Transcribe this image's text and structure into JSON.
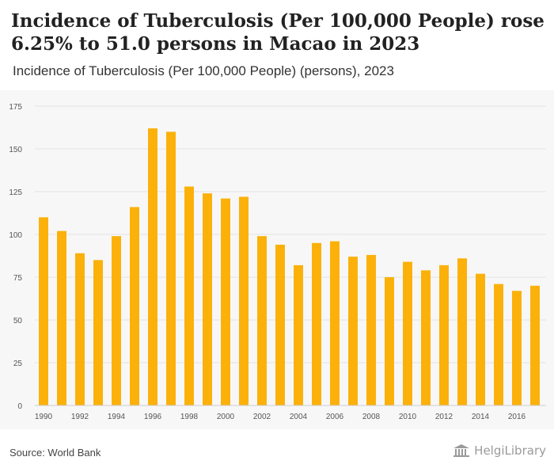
{
  "header": {
    "title": "Incidence of Tuberculosis (Per 100,000 People) rose 6.25% to 51.0 persons in Macao in 2023",
    "subtitle": "Incidence of Tuberculosis (Per 100,000 People) (persons), 2023"
  },
  "footer": {
    "source": "Source: World Bank",
    "brand": "HelgiLibrary",
    "brand_icon": "building-columns-icon"
  },
  "colors": {
    "bar": "#fbb10a",
    "grid": "#e3e3e3",
    "axis_text": "#555555",
    "background": "#f7f7f7"
  },
  "chart_data": {
    "type": "bar",
    "title": "Incidence of Tuberculosis (Per 100,000 People) (persons), 2023",
    "xlabel": "",
    "ylabel": "",
    "ylim": [
      0,
      175
    ],
    "yticks": [
      0,
      25,
      50,
      75,
      100,
      125,
      150,
      175
    ],
    "grid": true,
    "legend": "none",
    "categories": [
      "1990",
      "1991",
      "1992",
      "1993",
      "1994",
      "1995",
      "1996",
      "1997",
      "1998",
      "1999",
      "2000",
      "2001",
      "2002",
      "2003",
      "2004",
      "2005",
      "2006",
      "2007",
      "2008",
      "2009",
      "2010",
      "2011",
      "2012",
      "2013",
      "2014",
      "2015",
      "2016",
      "2017"
    ],
    "xtick_labels": [
      "1990",
      "1992",
      "1994",
      "1996",
      "1998",
      "2000",
      "2002",
      "2004",
      "2006",
      "2008",
      "2010",
      "2012",
      "2014",
      "2016"
    ],
    "values": [
      110,
      102,
      89,
      85,
      99,
      116,
      162,
      160,
      128,
      124,
      121,
      122,
      99,
      94,
      82,
      95,
      96,
      87,
      88,
      75,
      84,
      79,
      82,
      86,
      77,
      71,
      67,
      70
    ]
  }
}
